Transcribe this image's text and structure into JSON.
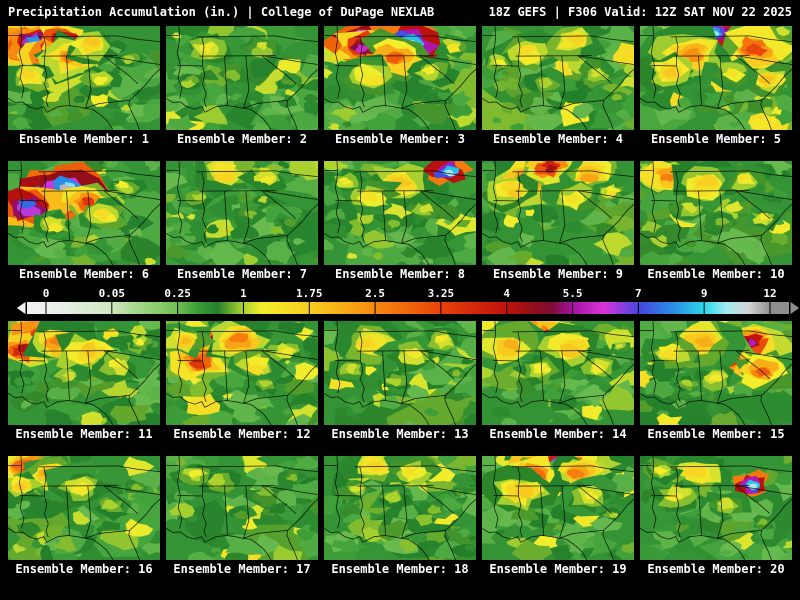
{
  "header": {
    "title_left": "Precipitation Accumulation (in.) | College of DuPage NEXLAB",
    "title_right": "18Z GEFS | F306 Valid: 12Z SAT NOV 22 2025"
  },
  "colorbar": {
    "ticks": [
      "0",
      "0.05",
      "0.25",
      "1",
      "1.75",
      "2.5",
      "3.25",
      "4",
      "5.5",
      "7",
      "9",
      "12"
    ],
    "values": [
      0,
      0.05,
      0.25,
      1,
      1.75,
      2.5,
      3.25,
      4,
      5.5,
      7,
      9,
      12
    ]
  },
  "colormap": {
    "values": [
      0,
      0.05,
      0.12,
      0.25,
      0.45,
      0.7,
      0.95,
      1.2,
      1.75,
      2.15,
      2.5,
      2.9,
      3.25,
      3.6,
      4,
      4.5,
      5,
      5.5,
      6.2,
      7,
      8,
      9,
      10,
      11,
      12
    ],
    "colors": [
      "#f0f0f0",
      "#cfe8c0",
      "#a5d98a",
      "#70bf52",
      "#3fa03a",
      "#237f2a",
      "#9acb30",
      "#f2ee2c",
      "#f7cd1f",
      "#f8ab16",
      "#f6880f",
      "#ef640a",
      "#e64209",
      "#d6280b",
      "#c1120d",
      "#970e16",
      "#7c0c30",
      "#a612a6",
      "#d934d9",
      "#4745de",
      "#2b8ce4",
      "#2cd6e8",
      "#a2ecf2",
      "#d4d4d4",
      "#8e8e8e"
    ]
  },
  "geo": {
    "lines": [
      [
        [
          0,
          0.695
        ],
        [
          0.045,
          0.735
        ],
        [
          0.095,
          0.73
        ],
        [
          0.135,
          0.775
        ],
        [
          0.19,
          0.8
        ],
        [
          0.235,
          0.775
        ],
        [
          0.255,
          0.83
        ],
        [
          0.295,
          0.8
        ],
        [
          0.33,
          0.775
        ],
        [
          0.4,
          0.765
        ],
        [
          0.455,
          0.775
        ],
        [
          0.5,
          0.79
        ],
        [
          0.555,
          0.8
        ],
        [
          0.6,
          0.845
        ],
        [
          0.645,
          0.9
        ],
        [
          0.675,
          0.96
        ],
        [
          0.69,
          1.0
        ]
      ],
      [
        [
          0.865,
          1.0
        ],
        [
          0.845,
          0.92
        ],
        [
          0.815,
          0.83
        ],
        [
          0.795,
          0.76
        ],
        [
          0.8,
          0.715
        ],
        [
          0.845,
          0.655
        ],
        [
          0.9,
          0.575
        ],
        [
          0.955,
          0.475
        ],
        [
          1.0,
          0.415
        ]
      ],
      [
        [
          0.085,
          0
        ],
        [
          0.09,
          0.12
        ],
        [
          0.075,
          0.26
        ],
        [
          0.095,
          0.38
        ],
        [
          0.08,
          0.5
        ],
        [
          0.105,
          0.6
        ],
        [
          0.09,
          0.695
        ]
      ],
      [
        [
          0.075,
          0.38
        ],
        [
          0.24,
          0.385
        ]
      ],
      [
        [
          0.24,
          0.385
        ],
        [
          0.255,
          0.47
        ],
        [
          0.24,
          0.56
        ],
        [
          0.265,
          0.65
        ],
        [
          0.25,
          0.72
        ],
        [
          0.265,
          0.78
        ]
      ],
      [
        [
          0.235,
          0.1
        ],
        [
          0.25,
          0.2
        ],
        [
          0.24,
          0.3
        ],
        [
          0.24,
          0.385
        ]
      ],
      [
        [
          0.22,
          0.29
        ],
        [
          0.72,
          0.285
        ]
      ],
      [
        [
          0.2,
          0.105
        ],
        [
          0.72,
          0.095
        ]
      ],
      [
        [
          0.385,
          0.285
        ],
        [
          0.405,
          0.77
        ]
      ],
      [
        [
          0.525,
          0.285
        ],
        [
          0.545,
          0.62
        ],
        [
          0.51,
          0.79
        ]
      ],
      [
        [
          0.51,
          0.79
        ],
        [
          0.6,
          0.745
        ],
        [
          0.7,
          0.73
        ],
        [
          0.8,
          0.715
        ]
      ],
      [
        [
          0.63,
          0.285
        ],
        [
          0.71,
          0.38
        ],
        [
          0.79,
          0.47
        ],
        [
          0.855,
          0.555
        ]
      ],
      [
        [
          0.63,
          0.285
        ],
        [
          0.78,
          0.32
        ],
        [
          0.9,
          0.35
        ],
        [
          1.0,
          0.37
        ]
      ],
      [
        [
          0,
          0.09
        ],
        [
          0.085,
          0.09
        ]
      ],
      [
        [
          0.72,
          0.095
        ],
        [
          0.86,
          0.13
        ],
        [
          1.0,
          0.15
        ]
      ]
    ]
  },
  "members": [
    {
      "label": "Ensemble Member: 1",
      "seed": 101,
      "blobs": [
        [
          0.2,
          0.22,
          0.26,
          4.2
        ],
        [
          0.17,
          0.16,
          0.13,
          9.5
        ],
        [
          0.3,
          0.26,
          0.14,
          6.3
        ],
        [
          0.36,
          0.12,
          0.12,
          5.6
        ],
        [
          0.42,
          0.3,
          0.18,
          2.6
        ],
        [
          0.55,
          0.18,
          0.16,
          1.8
        ],
        [
          0.14,
          0.48,
          0.16,
          1.6
        ],
        [
          0.6,
          0.5,
          0.14,
          1.2
        ],
        [
          0.8,
          0.3,
          0.12,
          1.0
        ]
      ]
    },
    {
      "label": "Ensemble Member: 2",
      "seed": 202,
      "blobs": [
        [
          0.28,
          0.22,
          0.18,
          1.3
        ],
        [
          0.62,
          0.2,
          0.15,
          1.1
        ],
        [
          0.45,
          0.45,
          0.16,
          0.9
        ],
        [
          0.15,
          0.55,
          0.13,
          1.0
        ],
        [
          0.8,
          0.55,
          0.12,
          0.8
        ]
      ]
    },
    {
      "label": "Ensemble Member: 3",
      "seed": 303,
      "blobs": [
        [
          0.38,
          0.14,
          0.22,
          11.2
        ],
        [
          0.56,
          0.16,
          0.18,
          10.2
        ],
        [
          0.25,
          0.2,
          0.14,
          6.0
        ],
        [
          0.48,
          0.3,
          0.16,
          3.0
        ],
        [
          0.3,
          0.5,
          0.2,
          1.4
        ],
        [
          0.7,
          0.45,
          0.16,
          1.2
        ],
        [
          0.85,
          0.2,
          0.1,
          1.5
        ]
      ]
    },
    {
      "label": "Ensemble Member: 4",
      "seed": 404,
      "blobs": [
        [
          0.3,
          0.25,
          0.2,
          1.5
        ],
        [
          0.6,
          0.15,
          0.18,
          1.6
        ],
        [
          0.75,
          0.45,
          0.14,
          1.1
        ],
        [
          0.4,
          0.55,
          0.16,
          1.0
        ],
        [
          0.12,
          0.35,
          0.12,
          1.2
        ],
        [
          0.9,
          0.7,
          0.1,
          0.9
        ]
      ]
    },
    {
      "label": "Ensemble Member: 5",
      "seed": 505,
      "blobs": [
        [
          0.55,
          0.16,
          0.24,
          4.0
        ],
        [
          0.63,
          0.1,
          0.13,
          6.4
        ],
        [
          0.48,
          0.06,
          0.12,
          9.8
        ],
        [
          0.75,
          0.22,
          0.18,
          3.2
        ],
        [
          0.34,
          0.26,
          0.2,
          2.4
        ],
        [
          0.18,
          0.45,
          0.18,
          1.8
        ],
        [
          0.85,
          0.5,
          0.14,
          1.9
        ],
        [
          0.6,
          0.45,
          0.15,
          1.4
        ]
      ]
    },
    {
      "label": "Ensemble Member: 6",
      "seed": 606,
      "blobs": [
        [
          0.26,
          0.34,
          0.2,
          10.8
        ],
        [
          0.4,
          0.28,
          0.17,
          11.4
        ],
        [
          0.14,
          0.44,
          0.17,
          7.5
        ],
        [
          0.52,
          0.38,
          0.14,
          3.4
        ],
        [
          0.64,
          0.5,
          0.16,
          1.5
        ],
        [
          0.76,
          0.24,
          0.13,
          1.2
        ],
        [
          0.3,
          0.62,
          0.14,
          1.3
        ]
      ]
    },
    {
      "label": "Ensemble Member: 7",
      "seed": 707,
      "blobs": [
        [
          0.4,
          0.12,
          0.2,
          1.6
        ],
        [
          0.66,
          0.16,
          0.16,
          1.3
        ],
        [
          0.2,
          0.35,
          0.14,
          1.0
        ],
        [
          0.55,
          0.5,
          0.15,
          0.9
        ],
        [
          0.8,
          0.6,
          0.12,
          0.8
        ]
      ]
    },
    {
      "label": "Ensemble Member: 8",
      "seed": 808,
      "blobs": [
        [
          0.82,
          0.1,
          0.11,
          10.2
        ],
        [
          0.5,
          0.2,
          0.2,
          1.8
        ],
        [
          0.3,
          0.34,
          0.17,
          1.4
        ],
        [
          0.66,
          0.46,
          0.14,
          1.1
        ],
        [
          0.15,
          0.2,
          0.12,
          1.3
        ],
        [
          0.45,
          0.62,
          0.13,
          0.9
        ]
      ]
    },
    {
      "label": "Ensemble Member: 9",
      "seed": 909,
      "blobs": [
        [
          0.32,
          0.14,
          0.22,
          2.6
        ],
        [
          0.52,
          0.1,
          0.18,
          3.4
        ],
        [
          0.44,
          0.06,
          0.12,
          4.4
        ],
        [
          0.72,
          0.14,
          0.16,
          2.2
        ],
        [
          0.2,
          0.3,
          0.16,
          1.8
        ],
        [
          0.6,
          0.36,
          0.18,
          1.4
        ],
        [
          0.85,
          0.3,
          0.1,
          1.5
        ]
      ]
    },
    {
      "label": "Ensemble Member: 10",
      "seed": 1010,
      "blobs": [
        [
          0.18,
          0.14,
          0.16,
          2.6
        ],
        [
          0.42,
          0.22,
          0.2,
          1.7
        ],
        [
          0.68,
          0.18,
          0.14,
          1.4
        ],
        [
          0.32,
          0.46,
          0.16,
          1.1
        ],
        [
          0.82,
          0.55,
          0.12,
          1.3
        ],
        [
          0.55,
          0.6,
          0.13,
          0.9
        ]
      ]
    },
    {
      "label": "Ensemble Member: 11",
      "seed": 1111,
      "blobs": [
        [
          0.16,
          0.14,
          0.2,
          3.4
        ],
        [
          0.1,
          0.28,
          0.13,
          4.2
        ],
        [
          0.33,
          0.2,
          0.17,
          2.6
        ],
        [
          0.52,
          0.3,
          0.2,
          1.8
        ],
        [
          0.72,
          0.42,
          0.16,
          1.3
        ],
        [
          0.4,
          0.55,
          0.14,
          1.1
        ],
        [
          0.88,
          0.2,
          0.1,
          1.2
        ]
      ]
    },
    {
      "label": "Ensemble Member: 12",
      "seed": 1212,
      "blobs": [
        [
          0.3,
          0.28,
          0.22,
          4.6
        ],
        [
          0.34,
          0.24,
          0.12,
          6.6
        ],
        [
          0.22,
          0.38,
          0.17,
          3.4
        ],
        [
          0.48,
          0.18,
          0.17,
          2.6
        ],
        [
          0.12,
          0.18,
          0.13,
          2.0
        ],
        [
          0.58,
          0.44,
          0.16,
          1.5
        ],
        [
          0.78,
          0.28,
          0.14,
          1.3
        ],
        [
          0.66,
          0.62,
          0.12,
          1.0
        ]
      ]
    },
    {
      "label": "Ensemble Member: 13",
      "seed": 1313,
      "blobs": [
        [
          0.3,
          0.22,
          0.2,
          1.6
        ],
        [
          0.58,
          0.32,
          0.17,
          1.3
        ],
        [
          0.18,
          0.46,
          0.14,
          1.1
        ],
        [
          0.78,
          0.18,
          0.13,
          1.3
        ],
        [
          0.46,
          0.58,
          0.14,
          1.0
        ],
        [
          0.88,
          0.5,
          0.1,
          0.9
        ]
      ]
    },
    {
      "label": "Ensemble Member: 14",
      "seed": 1414,
      "blobs": [
        [
          0.3,
          0.12,
          0.24,
          3.3
        ],
        [
          0.44,
          0.14,
          0.12,
          4.7
        ],
        [
          0.18,
          0.24,
          0.18,
          2.1
        ],
        [
          0.58,
          0.28,
          0.2,
          1.8
        ],
        [
          0.76,
          0.46,
          0.16,
          1.3
        ],
        [
          0.38,
          0.48,
          0.18,
          1.2
        ],
        [
          0.9,
          0.25,
          0.08,
          1.1
        ]
      ]
    },
    {
      "label": "Ensemble Member: 15",
      "seed": 1515,
      "blobs": [
        [
          0.68,
          0.28,
          0.22,
          4.1
        ],
        [
          0.73,
          0.22,
          0.12,
          5.7
        ],
        [
          0.58,
          0.38,
          0.17,
          3.3
        ],
        [
          0.8,
          0.48,
          0.14,
          3.0
        ],
        [
          0.4,
          0.2,
          0.2,
          2.1
        ],
        [
          0.2,
          0.3,
          0.16,
          1.5
        ],
        [
          0.5,
          0.56,
          0.14,
          1.3
        ],
        [
          0.3,
          0.6,
          0.12,
          1.0
        ]
      ]
    },
    {
      "label": "Ensemble Member: 16",
      "seed": 1616,
      "blobs": [
        [
          0.14,
          0.12,
          0.18,
          3.3
        ],
        [
          0.28,
          0.18,
          0.17,
          2.1
        ],
        [
          0.08,
          0.28,
          0.13,
          1.8
        ],
        [
          0.46,
          0.32,
          0.2,
          1.3
        ],
        [
          0.66,
          0.48,
          0.16,
          1.0
        ],
        [
          0.84,
          0.3,
          0.11,
          0.9
        ]
      ]
    },
    {
      "label": "Ensemble Member: 17",
      "seed": 1717,
      "blobs": [
        [
          0.36,
          0.26,
          0.2,
          1.0
        ],
        [
          0.18,
          0.18,
          0.15,
          1.2
        ],
        [
          0.64,
          0.38,
          0.17,
          0.9
        ],
        [
          0.5,
          0.56,
          0.14,
          0.8
        ],
        [
          0.82,
          0.2,
          0.11,
          0.9
        ]
      ]
    },
    {
      "label": "Ensemble Member: 18",
      "seed": 1818,
      "blobs": [
        [
          0.34,
          0.1,
          0.2,
          1.6
        ],
        [
          0.58,
          0.14,
          0.16,
          1.4
        ],
        [
          0.2,
          0.32,
          0.14,
          1.1
        ],
        [
          0.72,
          0.52,
          0.14,
          0.9
        ],
        [
          0.46,
          0.42,
          0.16,
          1.0
        ],
        [
          0.88,
          0.35,
          0.09,
          0.8
        ]
      ]
    },
    {
      "label": "Ensemble Member: 19",
      "seed": 1919,
      "blobs": [
        [
          0.46,
          0.12,
          0.22,
          4.6
        ],
        [
          0.54,
          0.09,
          0.13,
          6.6
        ],
        [
          0.5,
          0.07,
          0.08,
          9.4
        ],
        [
          0.34,
          0.2,
          0.17,
          3.3
        ],
        [
          0.64,
          0.16,
          0.16,
          2.6
        ],
        [
          0.24,
          0.34,
          0.2,
          1.8
        ],
        [
          0.7,
          0.38,
          0.16,
          1.3
        ],
        [
          0.85,
          0.55,
          0.1,
          1.0
        ]
      ]
    },
    {
      "label": "Ensemble Member: 20",
      "seed": 2020,
      "blobs": [
        [
          0.74,
          0.28,
          0.09,
          10.3
        ],
        [
          0.38,
          0.18,
          0.2,
          1.6
        ],
        [
          0.24,
          0.38,
          0.17,
          1.3
        ],
        [
          0.58,
          0.46,
          0.16,
          1.1
        ],
        [
          0.14,
          0.14,
          0.13,
          1.2
        ],
        [
          0.8,
          0.65,
          0.11,
          0.9
        ]
      ]
    }
  ]
}
